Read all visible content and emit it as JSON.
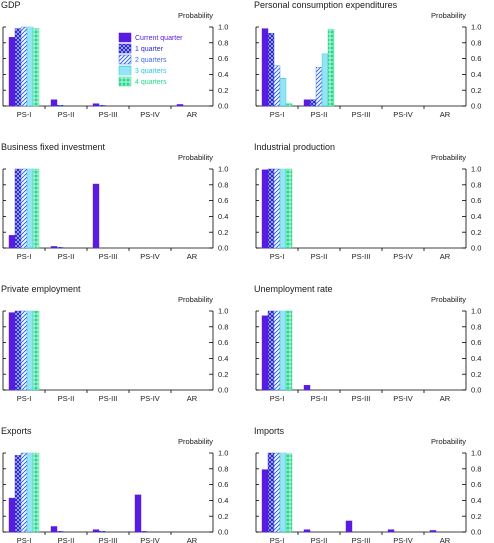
{
  "figure": {
    "probability_label": "Probability",
    "categories": [
      "PS-I",
      "PS-II",
      "PS-III",
      "PS-IV",
      "AR"
    ],
    "legend": [
      {
        "name": "Current quarter",
        "color": "#5a1be0",
        "pattern": "solid"
      },
      {
        "name": "1 quarter",
        "color": "#2b2bd1",
        "pattern": "crosshatch"
      },
      {
        "name": "2 quarters",
        "color": "#3a6ee6",
        "pattern": "diagonal"
      },
      {
        "name": "3 quarters",
        "color": "#28c8e8",
        "pattern": "horizontal"
      },
      {
        "name": "4 quarters",
        "color": "#27d98c",
        "pattern": "grid"
      }
    ],
    "yticks": [
      "0.0",
      "0.2",
      "0.4",
      "0.6",
      "0.8",
      "1.0"
    ],
    "text_color": "#1a1a1a"
  },
  "chart_data": [
    {
      "type": "bar",
      "title": "GDP",
      "ylabel": "Probability",
      "ylim": [
        0,
        1.0
      ],
      "categories": [
        "PS-I",
        "PS-II",
        "PS-III",
        "PS-IV",
        "AR"
      ],
      "series": [
        {
          "name": "Current quarter",
          "values": [
            0.87,
            0.08,
            0.03,
            0.0,
            0.02
          ]
        },
        {
          "name": "1 quarter",
          "values": [
            0.98,
            0.01,
            0.01,
            0.0,
            0.0
          ]
        },
        {
          "name": "2 quarters",
          "values": [
            1.0,
            0.0,
            0.0,
            0.0,
            0.0
          ]
        },
        {
          "name": "3 quarters",
          "values": [
            1.0,
            0.0,
            0.0,
            0.0,
            0.0
          ]
        },
        {
          "name": "4 quarters",
          "values": [
            0.98,
            0.0,
            0.0,
            0.0,
            0.0
          ]
        }
      ],
      "legend": true
    },
    {
      "type": "bar",
      "title": "Personal consumption expenditures",
      "ylabel": "Probability",
      "ylim": [
        0,
        1.0
      ],
      "categories": [
        "PS-I",
        "PS-II",
        "PS-III",
        "PS-IV",
        "AR"
      ],
      "series": [
        {
          "name": "Current quarter",
          "values": [
            0.98,
            0.08,
            0.0,
            0.0,
            0.0
          ]
        },
        {
          "name": "1 quarter",
          "values": [
            0.92,
            0.08,
            0.0,
            0.0,
            0.0
          ]
        },
        {
          "name": "2 quarters",
          "values": [
            0.51,
            0.49,
            0.0,
            0.0,
            0.0
          ]
        },
        {
          "name": "3 quarters",
          "values": [
            0.35,
            0.66,
            0.0,
            0.0,
            0.0
          ]
        },
        {
          "name": "4 quarters",
          "values": [
            0.03,
            0.97,
            0.0,
            0.0,
            0.0
          ]
        }
      ]
    },
    {
      "type": "bar",
      "title": "Business fixed investment",
      "ylabel": "Probability",
      "ylim": [
        0,
        1.0
      ],
      "categories": [
        "PS-I",
        "PS-II",
        "PS-III",
        "PS-IV",
        "AR"
      ],
      "series": [
        {
          "name": "Current quarter",
          "values": [
            0.16,
            0.02,
            0.81,
            0.0,
            0.0
          ]
        },
        {
          "name": "1 quarter",
          "values": [
            1.0,
            0.01,
            0.0,
            0.0,
            0.0
          ]
        },
        {
          "name": "2 quarters",
          "values": [
            1.0,
            0.0,
            0.0,
            0.0,
            0.0
          ]
        },
        {
          "name": "3 quarters",
          "values": [
            1.0,
            0.0,
            0.0,
            0.0,
            0.0
          ]
        },
        {
          "name": "4 quarters",
          "values": [
            1.0,
            0.0,
            0.0,
            0.0,
            0.0
          ]
        }
      ]
    },
    {
      "type": "bar",
      "title": "Industrial production",
      "ylabel": "Probability",
      "ylim": [
        0,
        1.0
      ],
      "categories": [
        "PS-I",
        "PS-II",
        "PS-III",
        "PS-IV",
        "AR"
      ],
      "series": [
        {
          "name": "Current quarter",
          "values": [
            0.99,
            0.0,
            0.0,
            0.0,
            0.0
          ]
        },
        {
          "name": "1 quarter",
          "values": [
            1.0,
            0.0,
            0.0,
            0.0,
            0.0
          ]
        },
        {
          "name": "2 quarters",
          "values": [
            1.0,
            0.0,
            0.0,
            0.0,
            0.0
          ]
        },
        {
          "name": "3 quarters",
          "values": [
            1.0,
            0.0,
            0.0,
            0.0,
            0.0
          ]
        },
        {
          "name": "4 quarters",
          "values": [
            1.0,
            0.0,
            0.0,
            0.0,
            0.0
          ]
        }
      ]
    },
    {
      "type": "bar",
      "title": "Private employment",
      "ylabel": "Probability",
      "ylim": [
        0,
        1.0
      ],
      "categories": [
        "PS-I",
        "PS-II",
        "PS-III",
        "PS-IV",
        "AR"
      ],
      "series": [
        {
          "name": "Current quarter",
          "values": [
            0.98,
            0.0,
            0.0,
            0.0,
            0.0
          ]
        },
        {
          "name": "1 quarter",
          "values": [
            1.0,
            0.0,
            0.0,
            0.0,
            0.0
          ]
        },
        {
          "name": "2 quarters",
          "values": [
            1.0,
            0.0,
            0.0,
            0.0,
            0.0
          ]
        },
        {
          "name": "3 quarters",
          "values": [
            1.0,
            0.0,
            0.0,
            0.0,
            0.0
          ]
        },
        {
          "name": "4 quarters",
          "values": [
            1.0,
            0.0,
            0.0,
            0.0,
            0.0
          ]
        }
      ]
    },
    {
      "type": "bar",
      "title": "Unemployment rate",
      "ylabel": "Probability",
      "ylim": [
        0,
        1.0
      ],
      "categories": [
        "PS-I",
        "PS-II",
        "PS-III",
        "PS-IV",
        "AR"
      ],
      "series": [
        {
          "name": "Current quarter",
          "values": [
            0.94,
            0.06,
            0.0,
            0.0,
            0.0
          ]
        },
        {
          "name": "1 quarter",
          "values": [
            1.0,
            0.0,
            0.0,
            0.0,
            0.0
          ]
        },
        {
          "name": "2 quarters",
          "values": [
            1.0,
            0.0,
            0.0,
            0.0,
            0.0
          ]
        },
        {
          "name": "3 quarters",
          "values": [
            1.0,
            0.0,
            0.0,
            0.0,
            0.0
          ]
        },
        {
          "name": "4 quarters",
          "values": [
            1.0,
            0.0,
            0.0,
            0.0,
            0.0
          ]
        }
      ]
    },
    {
      "type": "bar",
      "title": "Exports",
      "ylabel": "Probability",
      "ylim": [
        0,
        1.0
      ],
      "categories": [
        "PS-I",
        "PS-II",
        "PS-III",
        "PS-IV",
        "AR"
      ],
      "series": [
        {
          "name": "Current quarter",
          "values": [
            0.43,
            0.07,
            0.03,
            0.47,
            0.0
          ]
        },
        {
          "name": "1 quarter",
          "values": [
            0.97,
            0.01,
            0.01,
            0.01,
            0.0
          ]
        },
        {
          "name": "2 quarters",
          "values": [
            1.0,
            0.0,
            0.0,
            0.0,
            0.0
          ]
        },
        {
          "name": "3 quarters",
          "values": [
            1.0,
            0.0,
            0.0,
            0.0,
            0.0
          ]
        },
        {
          "name": "4 quarters",
          "values": [
            1.0,
            0.0,
            0.0,
            0.0,
            0.0
          ]
        }
      ]
    },
    {
      "type": "bar",
      "title": "Imports",
      "ylabel": "Probability",
      "ylim": [
        0,
        1.0
      ],
      "categories": [
        "PS-I",
        "PS-II",
        "PS-III",
        "PS-IV",
        "AR"
      ],
      "series": [
        {
          "name": "Current quarter",
          "values": [
            0.79,
            0.03,
            0.14,
            0.03,
            0.02
          ]
        },
        {
          "name": "1 quarter",
          "values": [
            1.0,
            0.0,
            0.0,
            0.0,
            0.0
          ]
        },
        {
          "name": "2 quarters",
          "values": [
            1.0,
            0.0,
            0.0,
            0.0,
            0.0
          ]
        },
        {
          "name": "3 quarters",
          "values": [
            1.0,
            0.0,
            0.0,
            0.0,
            0.0
          ]
        },
        {
          "name": "4 quarters",
          "values": [
            0.99,
            0.0,
            0.0,
            0.0,
            0.0
          ]
        }
      ]
    }
  ]
}
